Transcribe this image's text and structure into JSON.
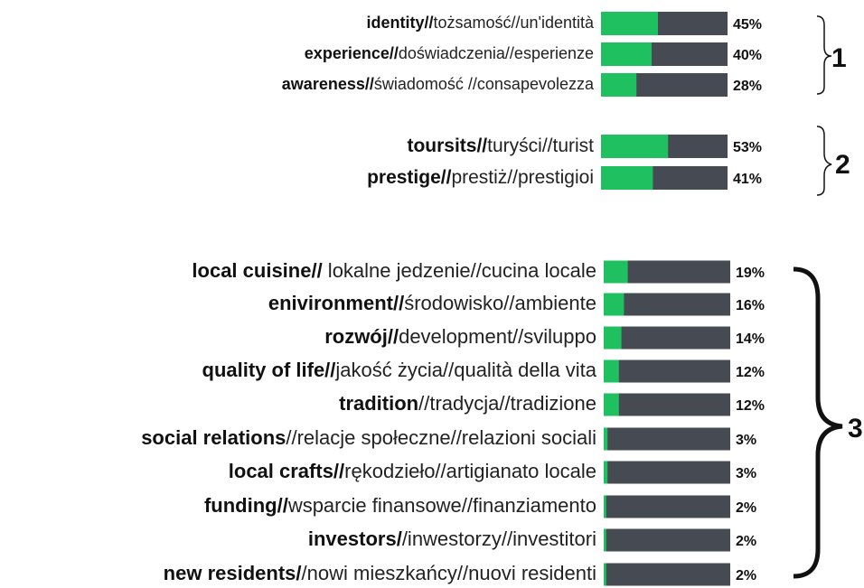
{
  "chart_data": {
    "type": "bar",
    "xlim": [
      0,
      100
    ],
    "color": "#1ec05f",
    "track_color": "#464a52",
    "groups": [
      {
        "label": "1",
        "bold": [
          "identity//",
          "experience//",
          "awareness//"
        ],
        "rest": [
          "tożsamość//un'identità",
          "doświadczenia//esperienze",
          "świadomość //consapevolezza"
        ],
        "values": [
          45,
          40,
          28
        ],
        "value_labels": [
          "45%",
          "40%",
          "28%"
        ]
      },
      {
        "label": "2",
        "bold": [
          "toursits//",
          "prestige//"
        ],
        "rest": [
          "turyści//turist",
          "prestiż//prestigioi"
        ],
        "values": [
          53,
          41
        ],
        "value_labels": [
          "53%",
          "41%"
        ]
      },
      {
        "label": "3",
        "bold": [
          "local cuisine//",
          "enivironment//",
          "rozwój//",
          "quality of life//",
          "tradition",
          "social relations",
          "local crafts//",
          "funding//",
          "investors/",
          "new residents/"
        ],
        "rest": [
          " lokalne jedzenie//cucina locale",
          "środowisko//ambiente",
          "development//sviluppo",
          "jakość życia//qualità della vita",
          "//tradycja//tradizione",
          "//relacje społeczne//relazioni sociali",
          "rękodzieło//artigianato locale",
          "wsparcie finansowe//finanziamento",
          "/inwestorzy//investitori",
          "/nowi mieszkańcy//nuovi residenti"
        ],
        "values": [
          19,
          16,
          14,
          12,
          12,
          3,
          3,
          2,
          2,
          2
        ],
        "value_labels": [
          "19%",
          "16%",
          "14%",
          "12%",
          "12%",
          "3%",
          "3%",
          "2%",
          "2%",
          "2%"
        ]
      }
    ]
  }
}
